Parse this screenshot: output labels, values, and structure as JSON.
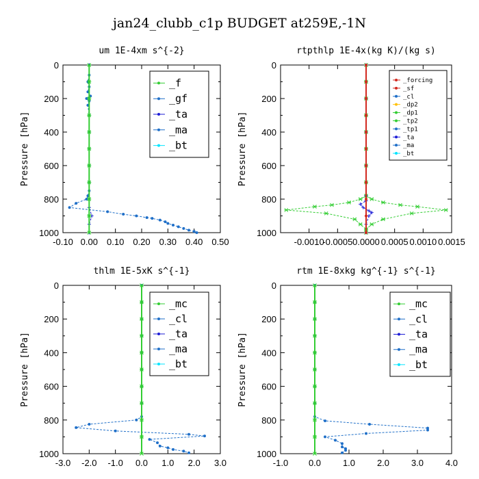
{
  "title": "jan24_clubb_c1p  BUDGET at259E,-1N",
  "chart_data": [
    {
      "type": "line",
      "title": "um   1E-4xm s^{-2}",
      "ylabel": "Pressure [hPa]",
      "xlim": [
        -0.1,
        0.5
      ],
      "ylim": [
        1000,
        0
      ],
      "xticks": [
        "-0.10",
        "0.00",
        "0.10",
        "0.20",
        "0.30",
        "0.40",
        "0.50"
      ],
      "xtick_values": [
        -0.1,
        0.0,
        0.1,
        0.2,
        0.3,
        0.4,
        0.5
      ],
      "yticks": [
        "0",
        "200",
        "400",
        "600",
        "800",
        "1000"
      ],
      "ytick_values": [
        0,
        200,
        400,
        600,
        800,
        1000
      ],
      "legend_size": "large",
      "legend": [
        "_f",
        "_gf",
        "_ta",
        "_ma",
        "_bt"
      ],
      "series": [
        {
          "name": "_gf",
          "color": "#1f6fc8",
          "marker": "dot",
          "dashed": true,
          "x": [
            0.0,
            0.0,
            -0.005,
            0.0,
            -0.005,
            0.005,
            -0.01,
            0.0,
            -0.005,
            0.0,
            0.0,
            0.0,
            0.0,
            0.0,
            0.0,
            -0.005,
            -0.01,
            -0.05,
            -0.075,
            0.07,
            0.13,
            0.18,
            0.22,
            0.24,
            0.27,
            0.29,
            0.3,
            0.32,
            0.34,
            0.36,
            0.38,
            0.4,
            0.41
          ],
          "y": [
            0,
            60,
            100,
            130,
            160,
            185,
            200,
            215,
            240,
            300,
            400,
            500,
            600,
            700,
            750,
            780,
            800,
            825,
            850,
            875,
            890,
            900,
            910,
            915,
            925,
            935,
            945,
            955,
            965,
            975,
            985,
            993,
            1000
          ]
        },
        {
          "name": "_ta",
          "color": "#1c1cd6",
          "marker": "plus",
          "dashed": true,
          "x": [
            0.0,
            0.0,
            0.0,
            0.0,
            0.0,
            0.0,
            0.0,
            0.0,
            0.0,
            0.0,
            0.01,
            0.0,
            0.0
          ],
          "y": [
            0,
            100,
            200,
            300,
            400,
            500,
            600,
            700,
            800,
            850,
            900,
            950,
            1000
          ]
        },
        {
          "name": "_f",
          "color": "#32cd32",
          "marker": "star",
          "dashed": false,
          "x": [
            0.0,
            0.0,
            0.0,
            0.0,
            0.0,
            0.0,
            0.0,
            0.0,
            0.0,
            0.0,
            0.0
          ],
          "y": [
            0,
            100,
            200,
            300,
            400,
            500,
            600,
            700,
            800,
            900,
            1000
          ]
        }
      ]
    },
    {
      "type": "line",
      "title": "rtpthlp   1E-4x(kg K)/(kg s)",
      "ylabel": "Pressure [hPa]",
      "xlim": [
        -0.0015,
        0.0015
      ],
      "ylim": [
        1000,
        0
      ],
      "xticks": [
        "-0.0010",
        "-0.0005",
        "0.0000",
        "0.0005",
        "0.0010",
        "0.0015"
      ],
      "xtick_values": [
        -0.001,
        -0.0005,
        0.0,
        0.0005,
        0.001,
        0.0015
      ],
      "yticks": [
        "0",
        "200",
        "400",
        "600",
        "800",
        "1000"
      ],
      "ytick_values": [
        0,
        200,
        400,
        600,
        800,
        1000
      ],
      "legend_size": "small",
      "legend": [
        "_forcing",
        "_sf",
        "_cl",
        "_dp2",
        "_dp1",
        "_tp2",
        "_tp1",
        "_ta",
        "_ma",
        "_bt"
      ],
      "series": [
        {
          "name": "_dp1",
          "color": "#32cd32",
          "marker": "star",
          "dashed": true,
          "x": [
            0.0,
            0.0,
            0.0,
            0.0,
            0.0,
            0.0,
            0.0,
            0.0,
            0.0,
            -0.0001,
            -0.0003,
            -0.0006,
            -0.0009,
            -0.0014,
            -0.0007,
            -0.0002,
            -0.0001,
            0.0,
            0.0
          ],
          "y": [
            0,
            100,
            200,
            300,
            400,
            500,
            600,
            700,
            780,
            800,
            820,
            835,
            845,
            865,
            885,
            920,
            950,
            980,
            1000
          ]
        },
        {
          "name": "_tp2",
          "color": "#32cd32",
          "marker": "star",
          "dashed": true,
          "x": [
            0.0,
            0.0,
            0.0,
            0.0,
            0.0,
            0.0,
            0.0,
            0.0,
            0.0,
            0.0001,
            0.0003,
            0.0006,
            0.0009,
            0.0014,
            0.0008,
            0.0003,
            0.0001,
            0.0,
            0.0
          ],
          "y": [
            0,
            100,
            200,
            300,
            400,
            500,
            600,
            700,
            780,
            800,
            820,
            835,
            845,
            865,
            885,
            920,
            950,
            980,
            1000
          ]
        },
        {
          "name": "_ta",
          "color": "#1c1cd6",
          "marker": "plus",
          "dashed": true,
          "x": [
            0.0,
            0.0,
            0.0,
            0.0,
            0.0,
            0.0,
            -0.0001,
            -5e-05,
            5e-05,
            0.0001,
            5e-05,
            0.0,
            0.0
          ],
          "y": [
            0,
            200,
            400,
            600,
            780,
            810,
            830,
            850,
            870,
            880,
            900,
            950,
            1000
          ]
        },
        {
          "name": "_sf",
          "color": "#d2281e",
          "marker": "dot",
          "dashed": false,
          "x": [
            0.0,
            0.0,
            0.0,
            0.0,
            0.0,
            0.0,
            0.0,
            0.0,
            0.0,
            0.0,
            0.0
          ],
          "y": [
            0,
            100,
            200,
            300,
            400,
            500,
            600,
            700,
            800,
            900,
            1000
          ]
        }
      ]
    },
    {
      "type": "line",
      "title": "thlm   1E-5xK s^{-1}",
      "ylabel": "Pressure [hPa]",
      "xlim": [
        -3.0,
        3.0
      ],
      "ylim": [
        1000,
        0
      ],
      "xticks": [
        "-3.0",
        "-2.0",
        "-1.0",
        "0.0",
        "1.0",
        "2.0",
        "3.0"
      ],
      "xtick_values": [
        -3.0,
        -2.0,
        -1.0,
        0.0,
        1.0,
        2.0,
        3.0
      ],
      "yticks": [
        "0",
        "200",
        "400",
        "600",
        "800",
        "1000"
      ],
      "ytick_values": [
        0,
        200,
        400,
        600,
        800,
        1000
      ],
      "legend_size": "large",
      "legend": [
        "_mc",
        "_cl",
        "_ta",
        "_ma",
        "_bt"
      ],
      "series": [
        {
          "name": "_cl",
          "color": "#1f6fc8",
          "marker": "dot",
          "dashed": true,
          "x": [
            0.0,
            0.0,
            0.0,
            0.0,
            0.0,
            0.0,
            0.0,
            0.0,
            0.0,
            -0.2,
            -2.0,
            -2.5,
            -1.0,
            1.8,
            2.4,
            0.3,
            0.6,
            0.7,
            1.0,
            1.2,
            1.6,
            1.8
          ],
          "y": [
            0,
            100,
            200,
            300,
            400,
            500,
            600,
            700,
            780,
            800,
            825,
            845,
            865,
            885,
            895,
            915,
            935,
            955,
            965,
            975,
            985,
            995
          ]
        },
        {
          "name": "_mc",
          "color": "#32cd32",
          "marker": "star",
          "dashed": false,
          "x": [
            0.0,
            0.0,
            0.0,
            0.0,
            0.0,
            0.0,
            0.0,
            0.0,
            0.0,
            0.0,
            0.0
          ],
          "y": [
            0,
            100,
            200,
            300,
            400,
            500,
            600,
            700,
            800,
            900,
            1000
          ]
        }
      ]
    },
    {
      "type": "line",
      "title": "rtm   1E-8xkg kg^{-1} s^{-1}",
      "ylabel": "Pressure [hPa]",
      "xlim": [
        -1.0,
        4.0
      ],
      "ylim": [
        1000,
        0
      ],
      "xticks": [
        "-1.0",
        "0.0",
        "1.0",
        "2.0",
        "3.0",
        "4.0"
      ],
      "xtick_values": [
        -1.0,
        0.0,
        1.0,
        2.0,
        3.0,
        4.0
      ],
      "yticks": [
        "0",
        "200",
        "400",
        "600",
        "800",
        "1000"
      ],
      "ytick_values": [
        0,
        200,
        400,
        600,
        800,
        1000
      ],
      "legend_size": "large",
      "legend": [
        "_mc",
        "_cl",
        "_ta",
        "_ma",
        "_bt"
      ],
      "series": [
        {
          "name": "_cl",
          "color": "#1f6fc8",
          "marker": "dot",
          "dashed": true,
          "x": [
            0.0,
            0.0,
            0.0,
            0.0,
            0.0,
            0.0,
            0.0,
            0.0,
            0.0,
            0.3,
            1.6,
            3.3,
            3.3,
            1.5,
            0.3,
            0.6,
            0.8,
            0.8,
            0.9,
            0.9,
            0.8
          ],
          "y": [
            0,
            100,
            200,
            300,
            400,
            500,
            600,
            700,
            780,
            805,
            825,
            848,
            860,
            880,
            900,
            920,
            940,
            960,
            970,
            980,
            995
          ]
        },
        {
          "name": "_mc",
          "color": "#32cd32",
          "marker": "star",
          "dashed": false,
          "x": [
            0.0,
            0.0,
            0.0,
            0.0,
            0.0,
            0.0,
            0.0,
            0.0,
            0.0,
            0.0,
            0.0
          ],
          "y": [
            0,
            100,
            200,
            300,
            400,
            500,
            600,
            700,
            800,
            900,
            1000
          ]
        }
      ]
    }
  ],
  "legend_colors": {
    "_f": "#32cd32",
    "_gf": "#1f6fc8",
    "_ta": "#1c1cd6",
    "_ma": "#1f6fc8",
    "_bt": "#00e5ff",
    "_mc": "#32cd32",
    "_cl": "#1f6fc8",
    "_forcing": "#d2281e",
    "_sf": "#d2281e",
    "_dp2": "#ffc107",
    "_dp1": "#32cd32",
    "_tp2": "#32cd32",
    "_tp1": "#1f6fc8"
  }
}
